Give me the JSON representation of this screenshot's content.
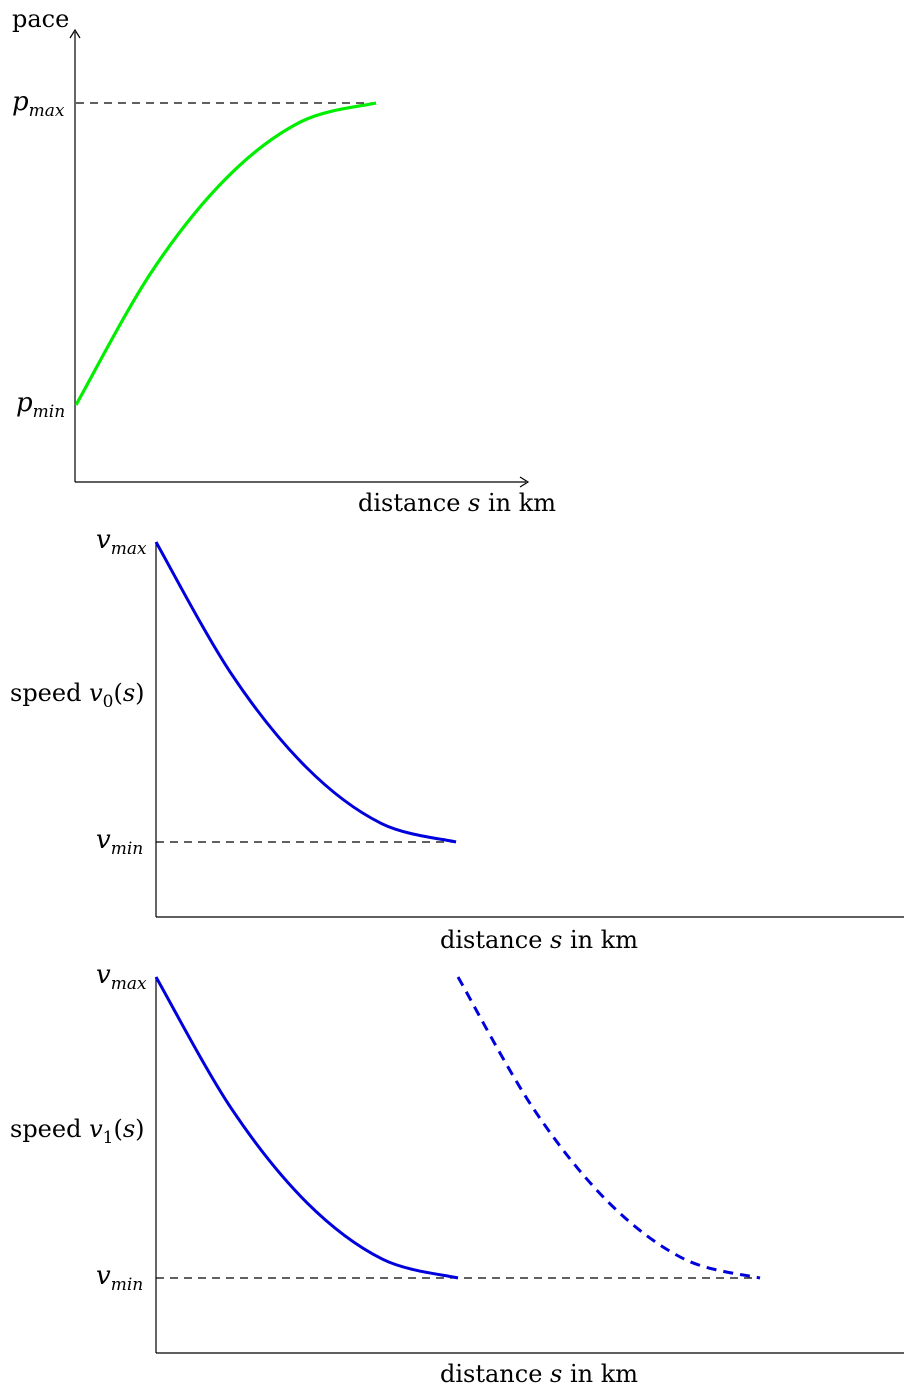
{
  "chart_data": [
    {
      "type": "line",
      "title": "",
      "ylabel": "pace",
      "xlabel_parts": [
        "distance ",
        "s",
        " in km"
      ],
      "ytick_labels": [
        {
          "base": "p",
          "sub": "max"
        },
        {
          "base": "p",
          "sub": "min"
        }
      ],
      "series": [
        {
          "color": "#00ee00",
          "style": "solid",
          "x": [
            0,
            0.25,
            0.5,
            0.75,
            1.0
          ],
          "y": [
            0,
            0.438,
            0.75,
            0.938,
            1.0
          ]
        }
      ],
      "reference_lines": [
        {
          "axis": "y",
          "value": 1.0,
          "style": "dashed"
        }
      ]
    },
    {
      "type": "line",
      "title": "",
      "ylabel_parts": [
        "speed ",
        "v",
        "0",
        "(",
        "s",
        ")"
      ],
      "xlabel_parts": [
        "distance ",
        "s",
        " in km"
      ],
      "ytick_labels": [
        {
          "base": "v",
          "sub": "max"
        },
        {
          "base": "v",
          "sub": "min"
        }
      ],
      "series": [
        {
          "color": "#0000dd",
          "style": "solid",
          "x": [
            0,
            0.25,
            0.5,
            0.75,
            1.0
          ],
          "y": [
            1.0,
            0.5625,
            0.25,
            0.0625,
            0
          ]
        }
      ],
      "reference_lines": [
        {
          "axis": "y",
          "value": 0,
          "style": "dashed"
        }
      ]
    },
    {
      "type": "line",
      "title": "",
      "ylabel_parts": [
        "speed ",
        "v",
        "1",
        "(",
        "s",
        ")"
      ],
      "xlabel_parts": [
        "distance ",
        "s",
        " in km"
      ],
      "ytick_labels": [
        {
          "base": "v",
          "sub": "max"
        },
        {
          "base": "v",
          "sub": "min"
        }
      ],
      "series": [
        {
          "color": "#0000dd",
          "style": "solid",
          "x": [
            0,
            0.25,
            0.5,
            0.75,
            1.0
          ],
          "y": [
            1.0,
            0.5625,
            0.25,
            0.0625,
            0
          ]
        },
        {
          "color": "#0000dd",
          "style": "dashed",
          "x": [
            1.0,
            1.25,
            1.5,
            1.75,
            2.0
          ],
          "y": [
            1.0,
            0.5625,
            0.25,
            0.0625,
            0
          ]
        }
      ],
      "reference_lines": [
        {
          "axis": "y",
          "value": 0,
          "style": "dashed"
        }
      ]
    }
  ]
}
